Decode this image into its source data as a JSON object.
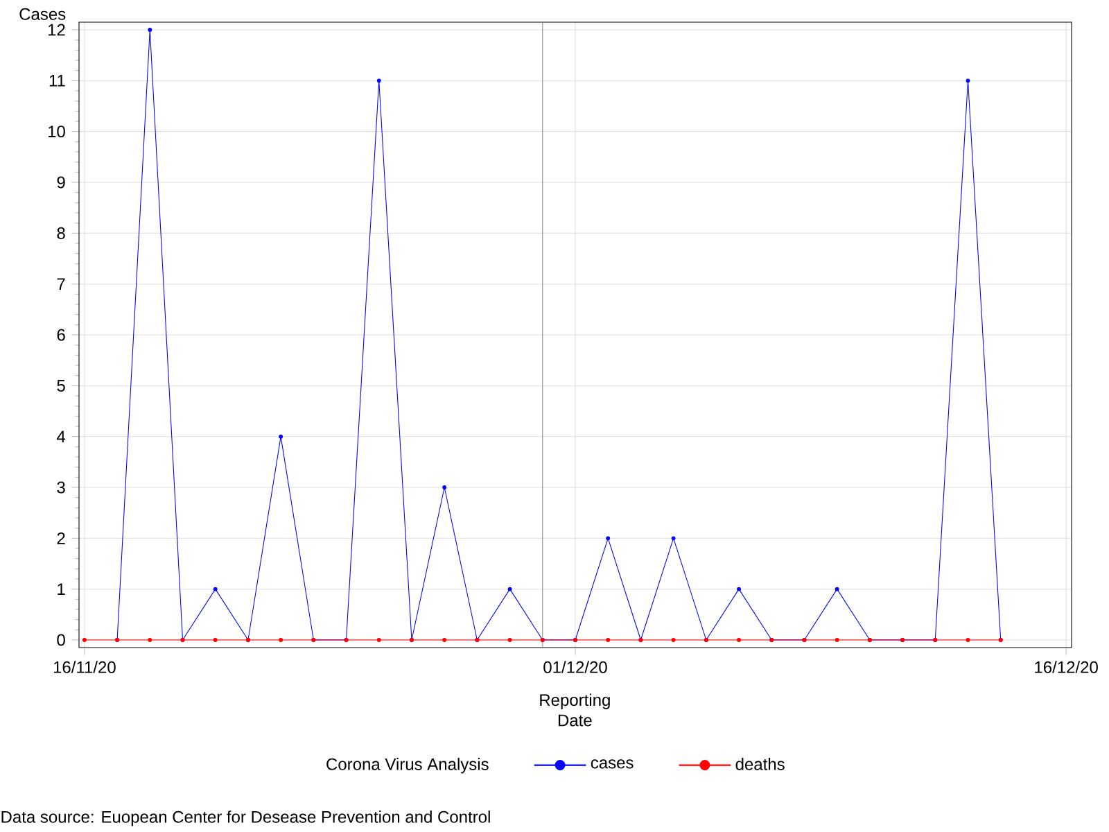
{
  "chart_data": {
    "type": "line",
    "ylabel": "Cases",
    "xlabel": "Reporting Date",
    "legend_title": "Corona Virus Analysis",
    "xlim": [
      "2020-11-15T20:00",
      "2020-12-16T04:00"
    ],
    "xticks": [
      {
        "value": "2020-11-16",
        "label": "16/11/20"
      },
      {
        "value": "2020-12-01",
        "label": "01/12/20"
      },
      {
        "value": "2020-12-16",
        "label": "16/12/20"
      }
    ],
    "ylim": [
      -0.15,
      12.15
    ],
    "yticks": [
      0,
      1,
      2,
      3,
      4,
      5,
      6,
      7,
      8,
      9,
      10,
      11,
      12
    ],
    "grid": true,
    "legend": "bottom",
    "marker": "circle",
    "line_style": "solid",
    "ref_lines": [
      {
        "axis": "x",
        "value": "2020-11-30",
        "color": "#8c8c8c"
      }
    ],
    "series": [
      {
        "name": "cases",
        "color": "#0000ff",
        "x": [
          "2020-11-17",
          "2020-11-18",
          "2020-11-19",
          "2020-11-20",
          "2020-11-21",
          "2020-11-22",
          "2020-11-23",
          "2020-11-24",
          "2020-11-25",
          "2020-11-26",
          "2020-11-27",
          "2020-11-28",
          "2020-11-29",
          "2020-11-30",
          "2020-12-01",
          "2020-12-02",
          "2020-12-03",
          "2020-12-04",
          "2020-12-05",
          "2020-12-06",
          "2020-12-07",
          "2020-12-08",
          "2020-12-09",
          "2020-12-10",
          "2020-12-11",
          "2020-12-12",
          "2020-12-13",
          "2020-12-14"
        ],
        "values": [
          0,
          12,
          0,
          1,
          0,
          4,
          0,
          0,
          11,
          0,
          3,
          0,
          1,
          0,
          0,
          2,
          0,
          2,
          0,
          1,
          0,
          0,
          1,
          0,
          0,
          0,
          11,
          0
        ]
      },
      {
        "name": "deaths",
        "color": "#ff0000",
        "x": [
          "2020-11-16",
          "2020-11-17",
          "2020-11-18",
          "2020-11-19",
          "2020-11-20",
          "2020-11-21",
          "2020-11-22",
          "2020-11-23",
          "2020-11-24",
          "2020-11-25",
          "2020-11-26",
          "2020-11-27",
          "2020-11-28",
          "2020-11-29",
          "2020-11-30",
          "2020-12-01",
          "2020-12-02",
          "2020-12-03",
          "2020-12-04",
          "2020-12-05",
          "2020-12-06",
          "2020-12-07",
          "2020-12-08",
          "2020-12-09",
          "2020-12-10",
          "2020-12-11",
          "2020-12-12",
          "2020-12-13",
          "2020-12-14"
        ],
        "values": [
          0,
          0,
          0,
          0,
          0,
          0,
          0,
          0,
          0,
          0,
          0,
          0,
          0,
          0,
          0,
          0,
          0,
          0,
          0,
          0,
          0,
          0,
          0,
          0,
          0,
          0,
          0,
          0,
          0
        ]
      }
    ],
    "annotations": [
      "Data source: Euopean Center for Desease Prevention and Control"
    ]
  }
}
